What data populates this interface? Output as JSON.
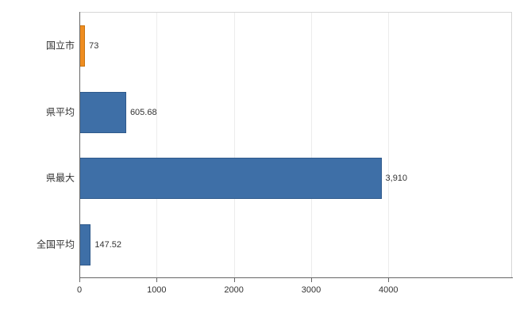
{
  "chart_data": {
    "type": "bar",
    "orientation": "horizontal",
    "title": "",
    "xlabel": "",
    "ylabel": "",
    "categories": [
      "国立市",
      "県平均",
      "県最大",
      "全国平均"
    ],
    "values": [
      73,
      605.68,
      3910,
      147.52
    ],
    "value_labels": [
      "73",
      "605.68",
      "3,910",
      "147.52"
    ],
    "bar_colors": [
      "orange",
      "blue",
      "blue",
      "blue"
    ],
    "xlim": [
      0,
      5600
    ],
    "x_ticks": [
      0,
      1000,
      2000,
      3000,
      4000
    ],
    "x_tick_labels": [
      "0",
      "1000",
      "2000",
      "3000",
      "4000"
    ],
    "grid": "vertical-light",
    "legend_position": "none",
    "colors": {
      "bar_blue": "#3e6fa7",
      "bar_orange": "#ef8d20",
      "axis": "#666666",
      "plot_border": "#d6d6d6",
      "text": "#333333",
      "background": "#ffffff"
    }
  }
}
